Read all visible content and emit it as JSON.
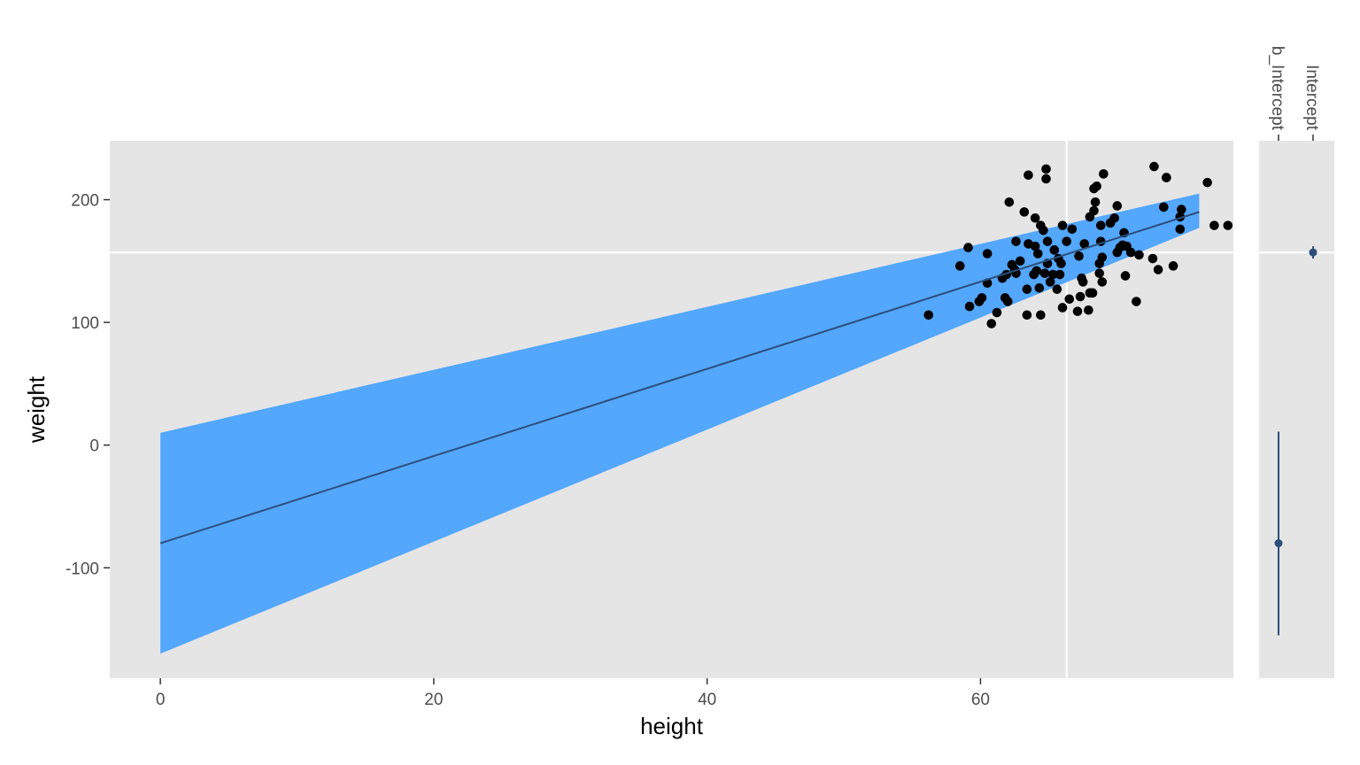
{
  "chart_data": [
    {
      "type": "scatter",
      "xlabel": "height",
      "ylabel": "weight",
      "xlim": [
        -3.7,
        78.5
      ],
      "ylim": [
        -190,
        248
      ],
      "x_ticks": [
        0,
        20,
        40,
        60
      ],
      "y_ticks": [
        -100,
        0,
        100,
        200
      ],
      "x_tick_labels": [
        "0",
        "20",
        "40",
        "60"
      ],
      "y_tick_labels": [
        "-100",
        "0",
        "100",
        "200"
      ],
      "reference_lines": {
        "vertical_x": 66.3,
        "horizontal_y": 157
      },
      "regression": {
        "x": [
          0,
          76
        ],
        "fit": [
          -80,
          190
        ],
        "lower": [
          -170,
          177
        ],
        "upper": [
          10,
          205
        ],
        "line_color": "#2c4f7a",
        "band_color": "#53a7fd"
      },
      "points": [
        [
          56.2,
          106
        ],
        [
          58.5,
          146
        ],
        [
          59.1,
          161
        ],
        [
          59.2,
          113
        ],
        [
          59.9,
          117
        ],
        [
          60.1,
          120
        ],
        [
          60.5,
          156
        ],
        [
          60.5,
          132
        ],
        [
          60.8,
          99
        ],
        [
          61.2,
          108
        ],
        [
          61.6,
          136
        ],
        [
          61.8,
          120
        ],
        [
          61.9,
          139
        ],
        [
          62.0,
          117
        ],
        [
          62.1,
          198
        ],
        [
          62.3,
          147
        ],
        [
          62.5,
          143
        ],
        [
          62.6,
          166
        ],
        [
          62.6,
          140
        ],
        [
          62.9,
          150
        ],
        [
          63.2,
          190
        ],
        [
          63.4,
          127
        ],
        [
          63.4,
          106
        ],
        [
          63.5,
          164
        ],
        [
          63.5,
          220
        ],
        [
          63.9,
          139
        ],
        [
          64.0,
          185
        ],
        [
          64.0,
          162
        ],
        [
          64.1,
          142
        ],
        [
          64.2,
          156
        ],
        [
          64.3,
          128
        ],
        [
          64.4,
          179
        ],
        [
          64.4,
          106
        ],
        [
          64.6,
          175
        ],
        [
          64.7,
          140
        ],
        [
          64.8,
          225
        ],
        [
          64.8,
          217
        ],
        [
          64.9,
          148
        ],
        [
          64.9,
          166
        ],
        [
          65.1,
          133
        ],
        [
          65.3,
          139
        ],
        [
          65.4,
          159
        ],
        [
          65.6,
          127
        ],
        [
          65.7,
          152
        ],
        [
          65.8,
          139
        ],
        [
          65.9,
          148
        ],
        [
          66.0,
          112
        ],
        [
          66.0,
          179
        ],
        [
          66.3,
          166
        ],
        [
          66.5,
          119
        ],
        [
          66.7,
          176
        ],
        [
          67.1,
          109
        ],
        [
          67.2,
          154
        ],
        [
          67.3,
          121
        ],
        [
          67.4,
          136
        ],
        [
          67.5,
          133
        ],
        [
          67.6,
          164
        ],
        [
          67.9,
          110
        ],
        [
          68.0,
          124
        ],
        [
          68.0,
          186
        ],
        [
          68.2,
          124
        ],
        [
          68.3,
          191
        ],
        [
          68.3,
          209
        ],
        [
          68.4,
          198
        ],
        [
          68.5,
          211
        ],
        [
          68.7,
          148
        ],
        [
          68.7,
          140
        ],
        [
          68.8,
          166
        ],
        [
          68.8,
          179
        ],
        [
          68.9,
          133
        ],
        [
          68.9,
          153
        ],
        [
          69.0,
          221
        ],
        [
          69.5,
          181
        ],
        [
          69.8,
          185
        ],
        [
          70.0,
          195
        ],
        [
          70.0,
          157
        ],
        [
          70.2,
          161
        ],
        [
          70.4,
          163
        ],
        [
          70.5,
          173
        ],
        [
          70.6,
          138
        ],
        [
          70.7,
          162
        ],
        [
          71.0,
          157
        ],
        [
          71.4,
          117
        ],
        [
          71.6,
          155
        ],
        [
          72.6,
          152
        ],
        [
          72.7,
          227
        ],
        [
          73.0,
          143
        ],
        [
          73.4,
          194
        ],
        [
          73.6,
          218
        ],
        [
          73.6,
          218
        ],
        [
          74.1,
          146
        ],
        [
          74.6,
          176
        ],
        [
          74.6,
          186
        ],
        [
          74.7,
          192
        ],
        [
          76.6,
          214
        ],
        [
          77.1,
          179
        ],
        [
          78.1,
          179
        ]
      ]
    },
    {
      "type": "interval",
      "categories": [
        "b_Intercept",
        "Intercept"
      ],
      "estimates": [
        {
          "category": "b_Intercept",
          "estimate": -80,
          "lower": -155,
          "upper": 11
        },
        {
          "category": "Intercept",
          "estimate": 157,
          "lower": 152,
          "upper": 162
        }
      ],
      "color": "#2c4f7a"
    }
  ]
}
